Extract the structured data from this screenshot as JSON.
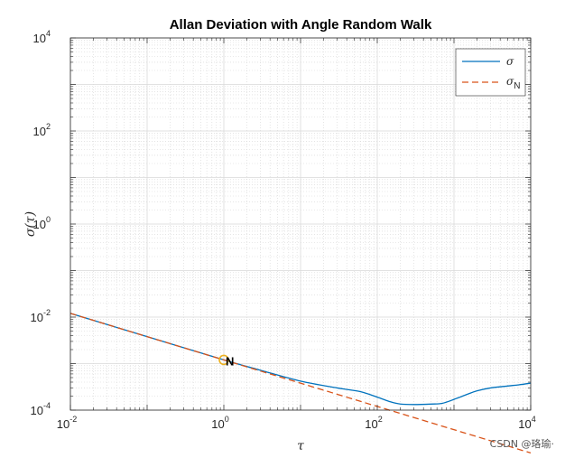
{
  "chart_data": {
    "type": "line",
    "title": "Allan Deviation with Angle Random Walk",
    "xlabel": "τ",
    "ylabel": "σ(τ)",
    "xscale": "log",
    "yscale": "log",
    "xlim": [
      0.01,
      10000
    ],
    "ylim": [
      0.0001,
      10000
    ],
    "grid": true,
    "xticks": [
      {
        "base": "10",
        "exp": "-2"
      },
      {
        "base": "10",
        "exp": "0"
      },
      {
        "base": "10",
        "exp": "2"
      },
      {
        "base": "10",
        "exp": "4"
      }
    ],
    "yticks": [
      {
        "base": "10",
        "exp": "-4"
      },
      {
        "base": "10",
        "exp": "-2"
      },
      {
        "base": "10",
        "exp": "0"
      },
      {
        "base": "10",
        "exp": "2"
      },
      {
        "base": "10",
        "exp": "4"
      }
    ],
    "legend_position": "top-right",
    "series": [
      {
        "name": "σ",
        "legend_label": "σ",
        "color": "#0072BD",
        "style": "solid",
        "points": [
          [
            0.01,
            0.012
          ],
          [
            0.1,
            0.0038
          ],
          [
            1,
            0.0012
          ],
          [
            3,
            0.00072
          ],
          [
            10,
            0.00042
          ],
          [
            30,
            0.0003
          ],
          [
            60,
            0.00025
          ],
          [
            100,
            0.00019
          ],
          [
            150,
            0.00015
          ],
          [
            200,
            0.000135
          ],
          [
            300,
            0.000132
          ],
          [
            500,
            0.000135
          ],
          [
            700,
            0.00014
          ],
          [
            1000,
            0.00017
          ],
          [
            1500,
            0.00022
          ],
          [
            2000,
            0.00026
          ],
          [
            3000,
            0.0003
          ],
          [
            5000,
            0.00033
          ],
          [
            7000,
            0.00035
          ],
          [
            10000,
            0.00038
          ]
        ]
      },
      {
        "name": "σ_N",
        "legend_label": "σ",
        "legend_subscript": "N",
        "color": "#D95319",
        "style": "dashed",
        "points": [
          [
            0.01,
            0.012
          ],
          [
            10000,
            1.2e-05
          ]
        ]
      }
    ],
    "annotation": {
      "label": "N",
      "x": 1,
      "y": 0.0012,
      "marker_color": "#EDB120"
    }
  },
  "watermark": "CSDN @珞瑜·"
}
